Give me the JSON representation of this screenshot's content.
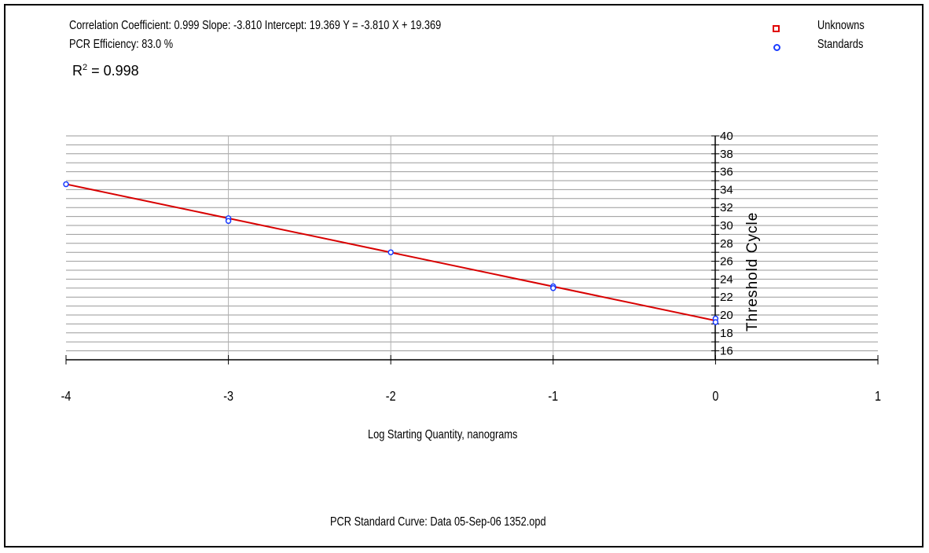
{
  "header": {
    "stats_line": "Correlation Coefficient: 0.999  Slope: -3.810  Intercept: 19.369  Y = -3.810 X + 19.369",
    "efficiency_line": "PCR Efficiency: 83.0 %",
    "r2_label": "R",
    "r2_sup": "2",
    "r2_value": " = 0.998"
  },
  "legend": {
    "unknowns": "Unknowns",
    "standards": "Standards"
  },
  "footer": {
    "caption": "PCR Standard Curve: Data 05-Sep-06 1352.opd"
  },
  "colors": {
    "fit_line": "#d80000",
    "standards": "#1a3cff",
    "unknowns": "#e00000",
    "grid": "#9a9a9a"
  },
  "chart_data": {
    "type": "scatter",
    "xlabel": "Log Starting Quantity, nanograms",
    "ylabel": "Threshold Cycle",
    "xlim": [
      -4,
      1
    ],
    "ylim": [
      15,
      40
    ],
    "x_ticks": [
      "-4",
      "-3",
      "-2",
      "-1",
      "0",
      "1"
    ],
    "y_ticks": [
      "16",
      "18",
      "20",
      "22",
      "24",
      "26",
      "28",
      "30",
      "32",
      "34",
      "36",
      "38",
      "40"
    ],
    "series": [
      {
        "name": "Standards",
        "marker": "circle",
        "x": [
          -4,
          -3,
          -3,
          -2,
          -1,
          -1,
          0,
          0
        ],
        "y": [
          34.6,
          30.8,
          30.5,
          27.0,
          23.2,
          23.0,
          19.6,
          19.2
        ]
      },
      {
        "name": "Unknowns",
        "marker": "square",
        "x": [],
        "y": []
      }
    ],
    "fit": {
      "slope": -3.81,
      "intercept": 19.369
    },
    "grid": true,
    "legend_position": "top-right"
  }
}
